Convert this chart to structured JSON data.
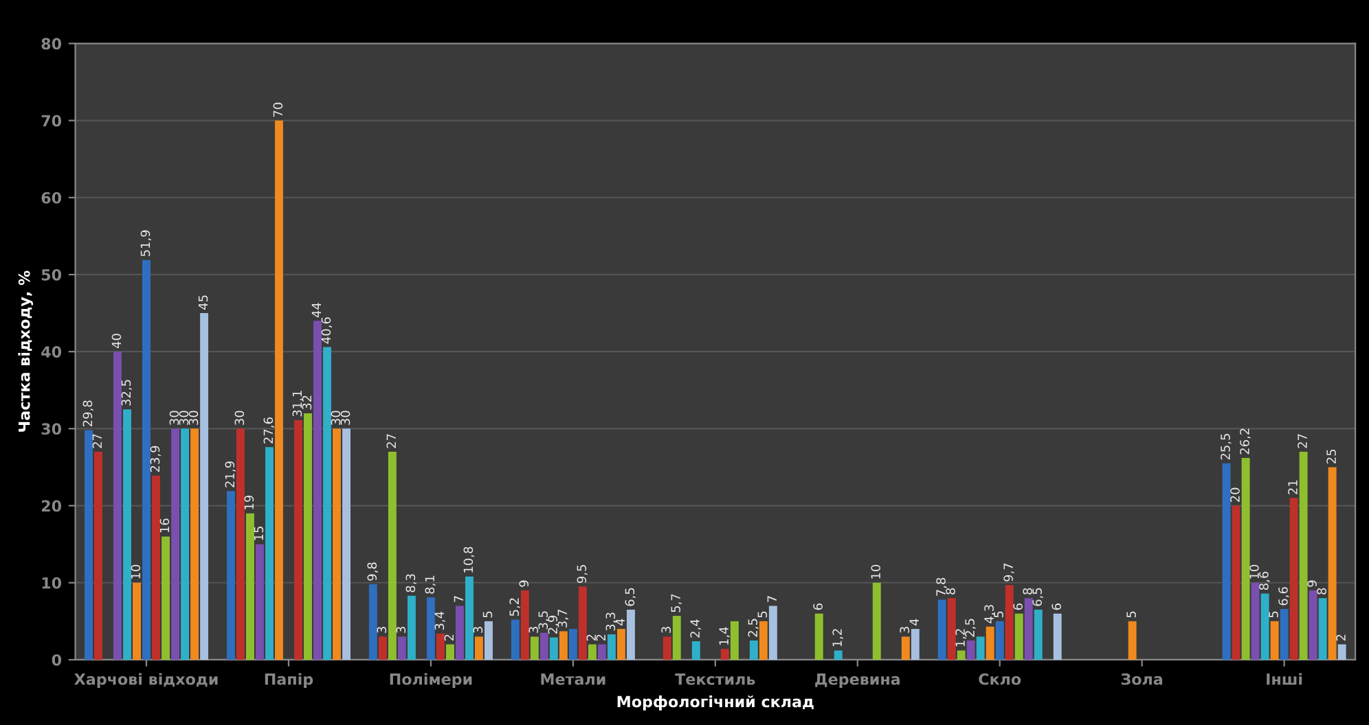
{
  "chart_data": {
    "type": "bar",
    "xlabel": "Морфологічний склад",
    "ylabel": "Частка відходу, %",
    "categories": [
      "Харчові відходи",
      "Папір",
      "Полімери",
      "Метали",
      "Текстиль",
      "Деревина",
      "Скло",
      "Зола",
      "Інші"
    ],
    "ylim": [
      0,
      80
    ],
    "yticks": [
      0,
      10,
      20,
      30,
      40,
      50,
      60,
      70,
      80
    ],
    "grid": "y",
    "legend": false,
    "series": [
      {
        "color": "#2f6fbf",
        "values": [
          29.8,
          21.9,
          9.8,
          5.2,
          null,
          null,
          7.8,
          null,
          25.5
        ],
        "value_labels": [
          "29,8",
          "21,9",
          "9,8",
          "5,2",
          null,
          null,
          "7,8",
          null,
          "25,5"
        ]
      },
      {
        "color": "#c0302b",
        "values": [
          27,
          30,
          3,
          9,
          3,
          null,
          8,
          null,
          20
        ],
        "value_labels": [
          "27",
          "30",
          "3",
          "9",
          "3",
          null,
          "8",
          null,
          "20"
        ]
      },
      {
        "color": "#8fbf2f",
        "values": [
          null,
          19,
          27,
          3,
          5.7,
          6,
          1.2,
          null,
          26.2
        ],
        "value_labels": [
          null,
          "19",
          "27",
          "3",
          "5,7",
          "6",
          "1,2",
          null,
          "26,2"
        ]
      },
      {
        "color": "#7a4fb0",
        "values": [
          40,
          15,
          3,
          3.5,
          null,
          null,
          2.5,
          null,
          10
        ],
        "value_labels": [
          "40",
          "15",
          "3",
          "3,5",
          null,
          null,
          "2,5",
          null,
          "10"
        ]
      },
      {
        "color": "#2fb0c8",
        "values": [
          32.5,
          27.6,
          8.3,
          2.9,
          2.4,
          1.2,
          3,
          null,
          8.6
        ],
        "value_labels": [
          "32,5",
          "27,6",
          "8,3",
          "2,9",
          "2,4",
          "1,2",
          null,
          null,
          "8,6"
        ]
      },
      {
        "color": "#f08a1e",
        "values": [
          10,
          70,
          null,
          3.7,
          null,
          null,
          4.3,
          5,
          5
        ],
        "value_labels": [
          "10",
          "70",
          null,
          "3,7",
          null,
          null,
          "4,3",
          "5",
          "5"
        ]
      },
      {
        "color": "#2f6fbf",
        "values": [
          51.9,
          null,
          8.1,
          4,
          null,
          null,
          5,
          null,
          6.6
        ],
        "value_labels": [
          "51,9",
          null,
          "8,1",
          null,
          null,
          null,
          "5",
          null,
          "6,6"
        ]
      },
      {
        "color": "#c0302b",
        "values": [
          23.9,
          31.1,
          3.4,
          9.5,
          1.4,
          null,
          9.7,
          null,
          21
        ],
        "value_labels": [
          "23,9",
          "31,1",
          "3,4",
          "9,5",
          "1,4",
          null,
          "9,7",
          null,
          "21"
        ]
      },
      {
        "color": "#8fbf2f",
        "values": [
          16,
          32,
          2,
          2,
          5,
          10,
          6,
          null,
          27
        ],
        "value_labels": [
          "16",
          "32",
          "2",
          "2",
          null,
          "10",
          "6",
          null,
          "27"
        ]
      },
      {
        "color": "#7a4fb0",
        "values": [
          30,
          44,
          7,
          2,
          null,
          null,
          8,
          null,
          9
        ],
        "value_labels": [
          "30",
          "44",
          "7",
          "2",
          null,
          null,
          "8",
          null,
          "9"
        ]
      },
      {
        "color": "#2fb0c8",
        "values": [
          30,
          40.6,
          10.8,
          3.3,
          2.5,
          null,
          6.5,
          null,
          8
        ],
        "value_labels": [
          "30",
          "40,6",
          "10,8",
          "3,3",
          "2,5",
          null,
          "6,5",
          null,
          "8"
        ]
      },
      {
        "color": "#f08a1e",
        "values": [
          30,
          30,
          3,
          4,
          5,
          3,
          null,
          null,
          25
        ],
        "value_labels": [
          "30",
          "30",
          "3",
          "4",
          "5",
          "3",
          null,
          null,
          "25"
        ]
      },
      {
        "color": "#a8c0e0",
        "values": [
          45,
          30,
          5,
          6.5,
          7,
          4,
          6,
          null,
          2
        ],
        "value_labels": [
          "45",
          "30",
          "5",
          "6,5",
          "7",
          "4",
          "6",
          null,
          "2"
        ]
      }
    ]
  }
}
